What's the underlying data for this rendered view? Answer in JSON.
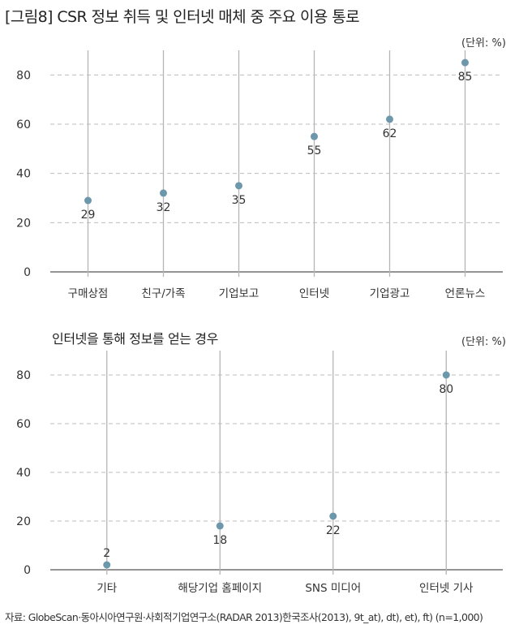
{
  "figure_title": "[그림8] CSR 정보 취득 및 인터넷 매체 중 주요 이용 통로",
  "source_note": "자료: GlobeScan·동아시아연구원·사회적기업연구소(RADAR 2013)한국조사(2013), 9t_at), dt), et), ft) (n=1,000)",
  "colors": {
    "marker": "#6d97ab",
    "stem": "#b5b5b5",
    "grid": "#bdbdbd",
    "axis": "#555555"
  },
  "chart_data": [
    {
      "type": "scatter",
      "title": "",
      "unit_label": "(단위: %)",
      "categories": [
        "구매상점",
        "친구/가족",
        "기업보고",
        "인터넷",
        "기업광고",
        "언론뉴스"
      ],
      "values": [
        29,
        32,
        35,
        55,
        62,
        85
      ],
      "ylim": [
        0,
        90
      ],
      "yticks": [
        0,
        20,
        40,
        60,
        80
      ],
      "grid": true
    },
    {
      "type": "scatter",
      "title": "인터넷을 통해 정보를 얻는 경우",
      "unit_label": "(단위: %)",
      "categories": [
        "기타",
        "해당기업 홈페이지",
        "SNS 미디어",
        "인터넷 기사"
      ],
      "values": [
        2,
        18,
        22,
        80
      ],
      "ylim": [
        0,
        90
      ],
      "yticks": [
        0,
        20,
        40,
        60,
        80
      ],
      "grid": true
    }
  ]
}
